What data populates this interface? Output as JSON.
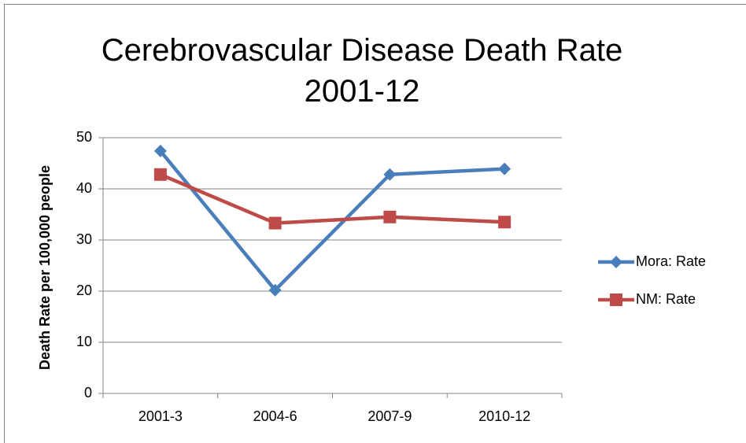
{
  "chart_data": {
    "type": "line",
    "title": "Cerebrovascular Disease Death Rate 2001-12",
    "y_label": "Death Rate per 100,000 people",
    "categories": [
      "2001-3",
      "2004-6",
      "2007-9",
      "2010-12"
    ],
    "series": [
      {
        "name": "Mora: Rate",
        "color": "#4a7ebb",
        "marker": "diamond",
        "values": [
          47.4,
          20.2,
          42.8,
          43.9
        ]
      },
      {
        "name": "NM: Rate",
        "color": "#be4b48",
        "marker": "square",
        "values": [
          42.8,
          33.3,
          34.5,
          33.5
        ]
      }
    ],
    "ylim": [
      0,
      50
    ],
    "yticks": [
      0,
      10,
      20,
      30,
      40,
      50
    ],
    "grid": true,
    "legend": "right"
  }
}
